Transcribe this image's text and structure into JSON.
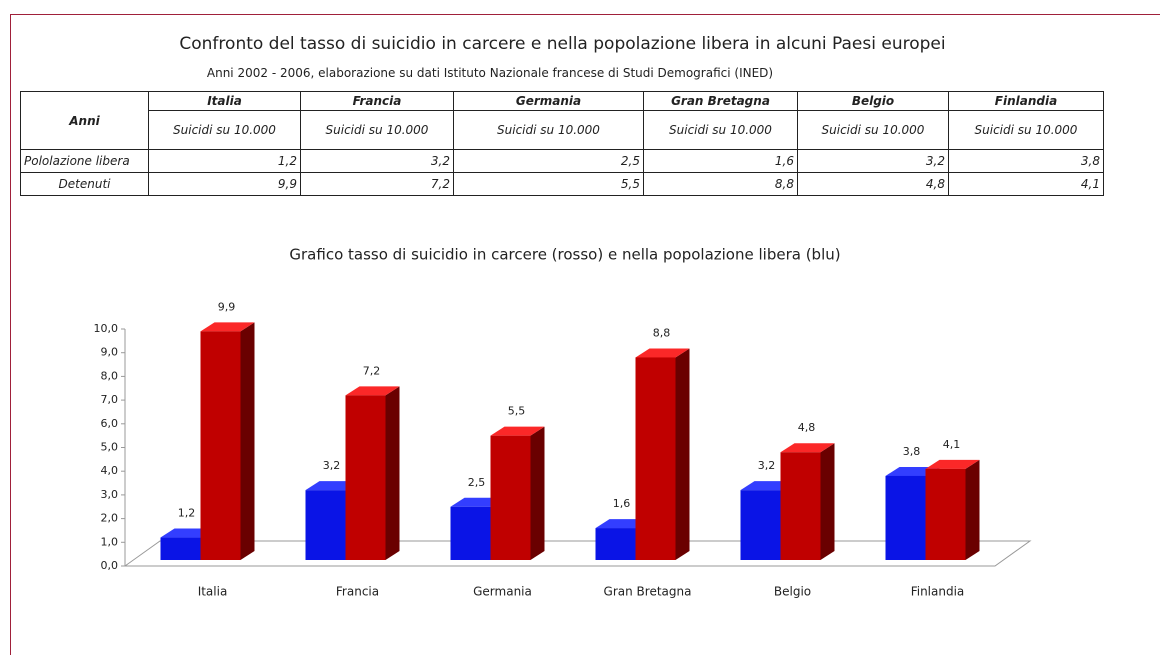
{
  "title": "Confronto del tasso di suicidio in carcere e nella popolazione libera in alcuni Paesi europei",
  "subtitle": "Anni 2002 - 2006, elaborazione su dati Istituto Nazionale francese di Studi Demografici (INED)",
  "table": {
    "corner": "Anni",
    "columns": [
      "Italia",
      "Francia",
      "Germania",
      "Gran Bretagna",
      "Belgio",
      "Finlandia"
    ],
    "units": [
      "Suicidi su 10.000",
      "Suicidi su 10.000",
      "Suicidi su 10.000",
      "Suicidi su 10.000",
      "Suicidi su 10.000",
      "Suicidi su 10.000"
    ],
    "rows": [
      [
        "Pololazione libera",
        "1,2",
        "3,2",
        "2,5",
        "1,6",
        "3,2",
        "3,8"
      ],
      [
        "Detenuti",
        "9,9",
        "7,2",
        "5,5",
        "8,8",
        "4,8",
        "4,1"
      ]
    ]
  },
  "chart_data": {
    "type": "bar3d",
    "title": "Grafico tasso di suicidio in carcere (rosso) e nella popolazione libera (blu)",
    "categories": [
      "Italia",
      "Francia",
      "Germania",
      "Gran Bretagna",
      "Belgio",
      "Finlandia"
    ],
    "series": [
      {
        "color": "#0a14e6",
        "values": [
          1.2,
          3.2,
          2.5,
          1.6,
          3.2,
          3.8
        ],
        "value_labels": [
          "1,2",
          "3,2",
          "2,5",
          "1,6",
          "3,2",
          "3,8"
        ]
      },
      {
        "color": "#c00000",
        "values": [
          9.9,
          7.2,
          5.5,
          8.8,
          4.8,
          4.1
        ],
        "value_labels": [
          "9,9",
          "7,2",
          "5,5",
          "8,8",
          "4,8",
          "4,1"
        ]
      }
    ],
    "ylim": [
      0,
      10
    ],
    "yticks": [
      {
        "value": 0,
        "label": "0,0"
      },
      {
        "value": 1,
        "label": "1,0"
      },
      {
        "value": 2,
        "label": "2,0"
      },
      {
        "value": 3,
        "label": "3,0"
      },
      {
        "value": 4,
        "label": "4,0"
      },
      {
        "value": 5,
        "label": "5,0"
      },
      {
        "value": 6,
        "label": "6,0"
      },
      {
        "value": 7,
        "label": "7,0"
      },
      {
        "value": 8,
        "label": "8,0"
      },
      {
        "value": 9,
        "label": "9,0"
      },
      {
        "value": 10,
        "label": "10,0"
      }
    ]
  }
}
